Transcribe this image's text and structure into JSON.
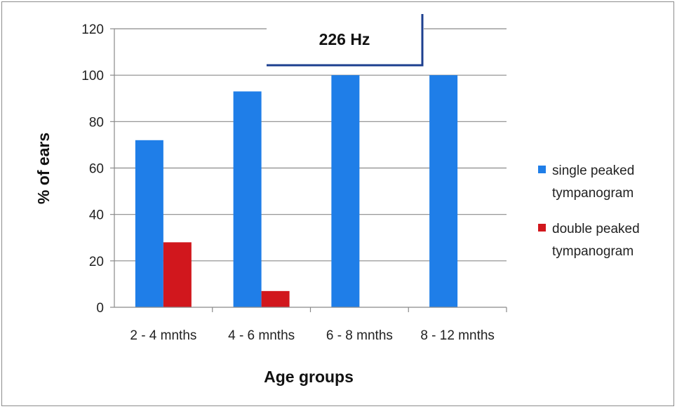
{
  "chart_data": {
    "type": "bar",
    "title": "",
    "annotation": "226 Hz",
    "xlabel": "Age groups",
    "ylabel": "% of ears",
    "ylim": [
      0,
      120
    ],
    "yticks": [
      0,
      20,
      40,
      60,
      80,
      100,
      120
    ],
    "grid": true,
    "legend_position": "right",
    "categories": [
      "2 - 4 mnths",
      "4 - 6 mnths",
      "6 - 8 mnths",
      "8 - 12 mnths"
    ],
    "series": [
      {
        "name": "single peaked tympanogram",
        "name_lines": [
          "single peaked",
          "tympanogram"
        ],
        "color": "#1f7ee8",
        "values": [
          72,
          93,
          100,
          100
        ]
      },
      {
        "name": "double peaked tympanogram",
        "name_lines": [
          "double peaked",
          "tympanogram"
        ],
        "color": "#d1171d",
        "values": [
          28,
          7,
          0,
          0
        ]
      }
    ]
  },
  "colors": {
    "grid": "#8a8a8a",
    "annotation_line": "#1c3f8f"
  }
}
